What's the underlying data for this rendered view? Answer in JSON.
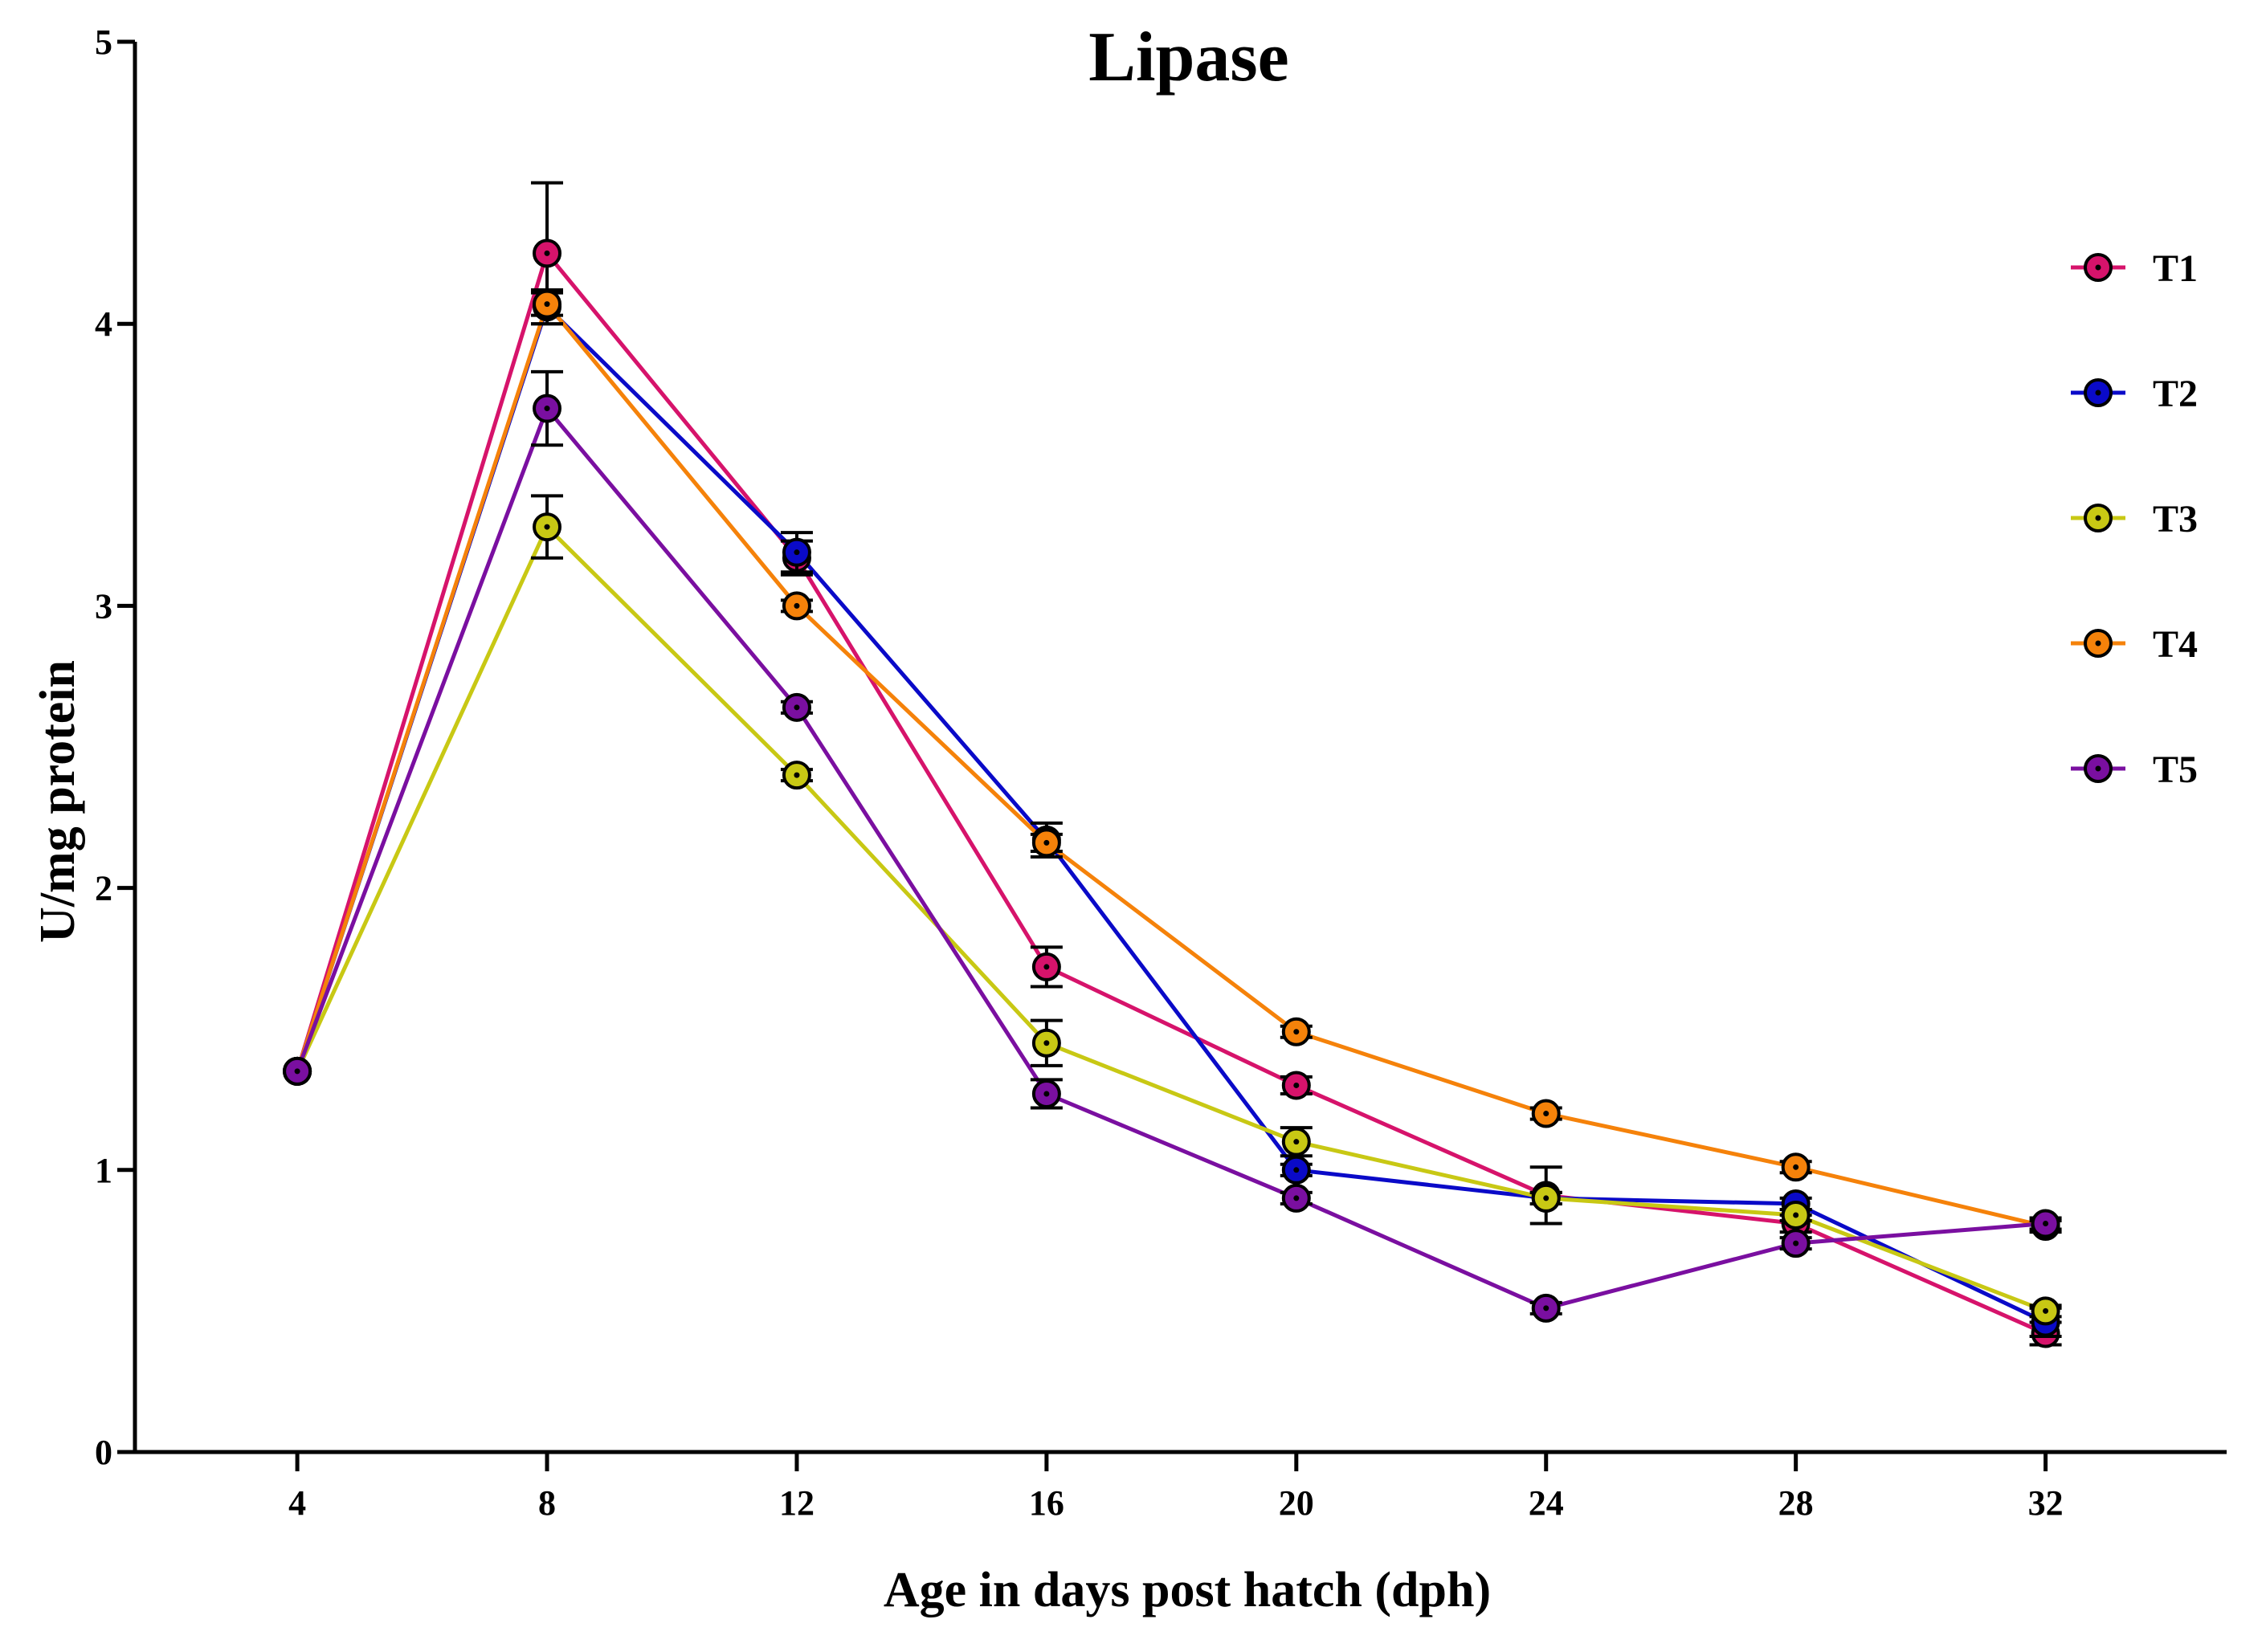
{
  "chart_data": {
    "type": "line",
    "title": "Lipase",
    "xlabel": "Age in days post hatch (dph)",
    "ylabel": "U/mg protein",
    "x": [
      4,
      8,
      12,
      16,
      20,
      24,
      28,
      32
    ],
    "x_tick_labels": [
      "4",
      "8",
      "12",
      "16",
      "20",
      "24",
      "28",
      "32"
    ],
    "xlim": [
      1.4,
      34.9
    ],
    "ylim": [
      0,
      5
    ],
    "y_ticks": [
      0,
      1,
      2,
      3,
      4,
      5
    ],
    "y_tick_labels": [
      "0",
      "1",
      "2",
      "3",
      "4",
      "5"
    ],
    "grid": false,
    "legend_position": "top-right",
    "series": [
      {
        "name": "T1",
        "color": "#D6136B",
        "values": [
          1.35,
          4.25,
          3.17,
          1.72,
          1.3,
          0.91,
          0.81,
          0.42
        ],
        "errors": [
          0,
          0.25,
          0.06,
          0.07,
          0.03,
          0.1,
          0.03,
          0.04
        ]
      },
      {
        "name": "T2",
        "color": "#0A0AC8",
        "values": [
          1.35,
          4.06,
          3.19,
          2.17,
          1.0,
          0.9,
          0.88,
          0.46
        ],
        "errors": [
          0,
          0.06,
          0.07,
          0.06,
          0.02,
          0.02,
          0.02,
          0.05
        ]
      },
      {
        "name": "T3",
        "color": "#C8C814",
        "values": [
          1.35,
          3.28,
          2.4,
          1.45,
          1.1,
          0.9,
          0.84,
          0.5
        ],
        "errors": [
          0,
          0.11,
          0.02,
          0.08,
          0.05,
          0.02,
          0.02,
          0.02
        ]
      },
      {
        "name": "T4",
        "color": "#F5820A",
        "values": [
          1.35,
          4.07,
          3.0,
          2.16,
          1.49,
          1.2,
          1.01,
          0.8
        ],
        "errors": [
          0,
          0.04,
          0.02,
          0.03,
          0.02,
          0.02,
          0.02,
          0.02
        ]
      },
      {
        "name": "T5",
        "color": "#7A0FA0",
        "values": [
          1.35,
          3.7,
          2.64,
          1.27,
          0.9,
          0.51,
          0.74,
          0.81
        ],
        "errors": [
          0,
          0.13,
          0.02,
          0.05,
          0.02,
          0.02,
          0.02,
          0.02
        ]
      }
    ]
  }
}
